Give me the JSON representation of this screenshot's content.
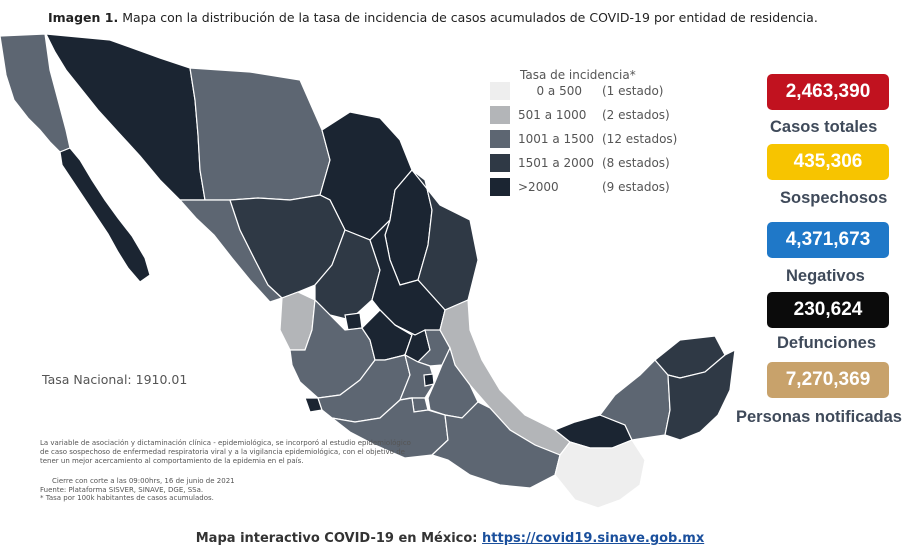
{
  "caption": {
    "prefix": "Imagen 1.",
    "text": "Mapa con la distribución de la tasa de incidencia de casos acumulados de COVID-19 por entidad de residencia."
  },
  "legend": {
    "title": "Tasa de incidencia*",
    "items": [
      {
        "range": "0 a   500",
        "count": "(1 estado)",
        "color": "#eeeeee"
      },
      {
        "range": "501 a  1000",
        "count": "(2 estados)",
        "color": "#b3b5b8"
      },
      {
        "range": "1001 a  1500",
        "count": "(12 estados)",
        "color": "#5d6672"
      },
      {
        "range": "1501 a  2000",
        "count": "(8 estados)",
        "color": "#2f3945"
      },
      {
        "range": ">2000",
        "count": "(9 estados)",
        "color": "#1b2532"
      }
    ]
  },
  "stats": [
    {
      "value": "2,463,390",
      "label": "Casos totales",
      "bg": "#c1121f",
      "fg": "#ffffff"
    },
    {
      "value": "435,306",
      "label": "Sospechosos",
      "bg": "#f7c400",
      "fg": "#ffffff"
    },
    {
      "value": "4,371,673",
      "label": "Negativos",
      "bg": "#1f78c8",
      "fg": "#ffffff"
    },
    {
      "value": "230,624",
      "label": "Defunciones",
      "bg": "#0b0b0b",
      "fg": "#ffffff"
    },
    {
      "value": "7,270,369",
      "label": "Personas notificadas",
      "bg": "#c8a26b",
      "fg": "#ffffff"
    }
  ],
  "tasa_nacional": "Tasa Nacional: 1910.01",
  "notes": {
    "methodology": "La variable de asociación y dictaminación clínica - epidemiológica, se incorporó al estudio epidemiológico de caso sospechoso de enfermedad respiratoria viral y a la vigilancia epidemiológica, con el objetivo de tener un mejor acercamiento al comportamiento de la epidemia en el país.",
    "cut": "Cierre con corte a las 09:00hrs, 16 de junio de 2021",
    "source": "Fuente: Plataforma SISVER, SINAVE, DGE, SSa.",
    "rate": "* Tasa por 100k habitantes de casos acumulados."
  },
  "footer": {
    "text": "Mapa interactivo COVID-19 en México:",
    "link": "https://covid19.sinave.gob.mx"
  }
}
